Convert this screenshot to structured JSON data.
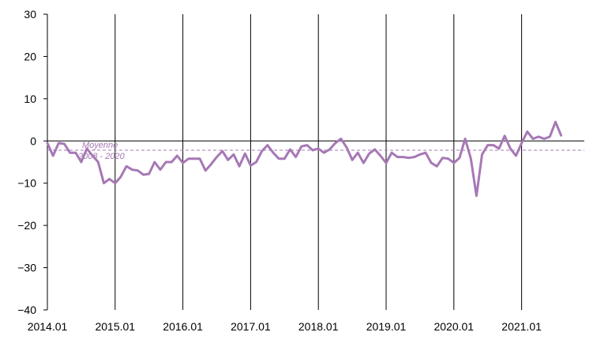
{
  "chart_data": {
    "type": "line",
    "title": "",
    "xlabel": "",
    "ylabel": "",
    "x_start": "2014.01",
    "ylim": [
      -40,
      30
    ],
    "y_ticks": [
      30,
      20,
      10,
      0,
      -10,
      -20,
      -30,
      -40
    ],
    "x_tick_labels": [
      "2014.01",
      "2015.01",
      "2016.01",
      "2017.01",
      "2018.01",
      "2019.01",
      "2020.01",
      "2021.01"
    ],
    "vertical_gridlines": true,
    "horizontal_gridlines": false,
    "colors": {
      "series": "#a678b5",
      "average": "#a678b5",
      "axis": "#000000"
    },
    "average_line": {
      "value": -2.2,
      "label_line1": "Moyenne",
      "label_line2": "2008 - 2020"
    },
    "series": [
      {
        "values": [
          -0.5,
          -3.5,
          -0.5,
          -0.7,
          -2.8,
          -2.8,
          -5.0,
          -1.8,
          -3.5,
          -5.0,
          -10.0,
          -9.0,
          -10.0,
          -8.5,
          -6.0,
          -6.8,
          -7.0,
          -8.0,
          -7.8,
          -5.0,
          -6.8,
          -5.0,
          -5.0,
          -3.5,
          -5.2,
          -4.2,
          -4.2,
          -4.2,
          -7.0,
          -5.5,
          -3.8,
          -2.4,
          -4.5,
          -3.2,
          -6.0,
          -3.0,
          -5.8,
          -5.0,
          -2.4,
          -1.0,
          -2.8,
          -4.2,
          -4.2,
          -2.0,
          -3.8,
          -1.3,
          -1.0,
          -2.2,
          -1.8,
          -2.8,
          -2.0,
          -0.5,
          0.5,
          -1.5,
          -4.5,
          -2.8,
          -5.2,
          -3.0,
          -2.0,
          -3.5,
          -5.2,
          -2.8,
          -3.8,
          -3.8,
          -4.0,
          -3.8,
          -3.2,
          -2.8,
          -5.2,
          -6.0,
          -4.0,
          -4.2,
          -5.2,
          -4.0,
          0.5,
          -4.2,
          -13.0,
          -3.2,
          -1.0,
          -1.0,
          -1.8,
          1.2,
          -1.8,
          -3.5,
          -0.5,
          2.2,
          0.5,
          1.0,
          0.5,
          1.0,
          4.5,
          1.3
        ]
      }
    ]
  }
}
